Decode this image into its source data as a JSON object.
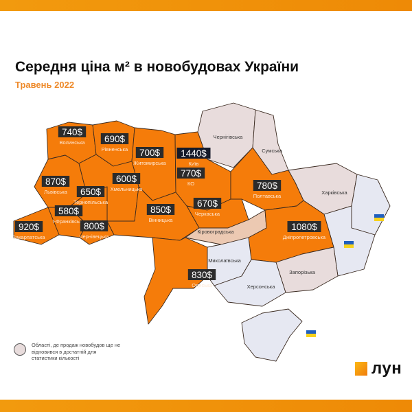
{
  "title": "Середня ціна м² в новобудовах України",
  "subtitle": "Травень 2022",
  "colors": {
    "priced": "#f57c0a",
    "no_data": "#e8dcdc",
    "kirovohrad": "#ecc9b2",
    "occupied": "#e6e8f2",
    "price_box": "#2b2b2b",
    "kyiv_box": "#141a2a",
    "accent": "#ee8a06"
  },
  "regions": [
    {
      "name": "Волинська",
      "price": "740$",
      "status": "priced"
    },
    {
      "name": "Рівненська",
      "price": "690$",
      "status": "priced"
    },
    {
      "name": "Житомирська",
      "price": "700$",
      "status": "priced"
    },
    {
      "name": "Київ",
      "price": "1440$",
      "status": "priced"
    },
    {
      "name": "КО",
      "price": "770$",
      "status": "priced"
    },
    {
      "name": "Львівська",
      "price": "870$",
      "status": "priced"
    },
    {
      "name": "Хмельницька",
      "price": "600$",
      "status": "priced"
    },
    {
      "name": "Тернопільська",
      "price": "650$",
      "status": "priced"
    },
    {
      "name": "І-Франківська",
      "price": "580$",
      "status": "priced"
    },
    {
      "name": "Закарпатська",
      "price": "920$",
      "status": "priced"
    },
    {
      "name": "Чернівецька",
      "price": "800$",
      "status": "priced"
    },
    {
      "name": "Вінницька",
      "price": "850$",
      "status": "priced"
    },
    {
      "name": "Черкаська",
      "price": "670$",
      "status": "priced"
    },
    {
      "name": "Полтавська",
      "price": "780$",
      "status": "priced"
    },
    {
      "name": "Дніпропетровська",
      "price": "1080$",
      "status": "priced"
    },
    {
      "name": "Одеська",
      "price": "830$",
      "status": "priced"
    },
    {
      "name": "Чернігівська",
      "status": "no_data"
    },
    {
      "name": "Сумська",
      "status": "no_data"
    },
    {
      "name": "Харківська",
      "status": "no_data"
    },
    {
      "name": "Кіровоградська",
      "status": "no_data"
    },
    {
      "name": "Миколаївська",
      "status": "occupied"
    },
    {
      "name": "Херсонська",
      "status": "occupied"
    },
    {
      "name": "Запорізька",
      "status": "no_data"
    }
  ],
  "flags": [
    "ukraine-flag-icon",
    "ukraine-flag-icon",
    "ukraine-flag-icon"
  ],
  "legend": {
    "text": "Області, де продаж новобудов ще не відновився в достатній для статистики кількості"
  },
  "logo": {
    "name": "лун"
  }
}
